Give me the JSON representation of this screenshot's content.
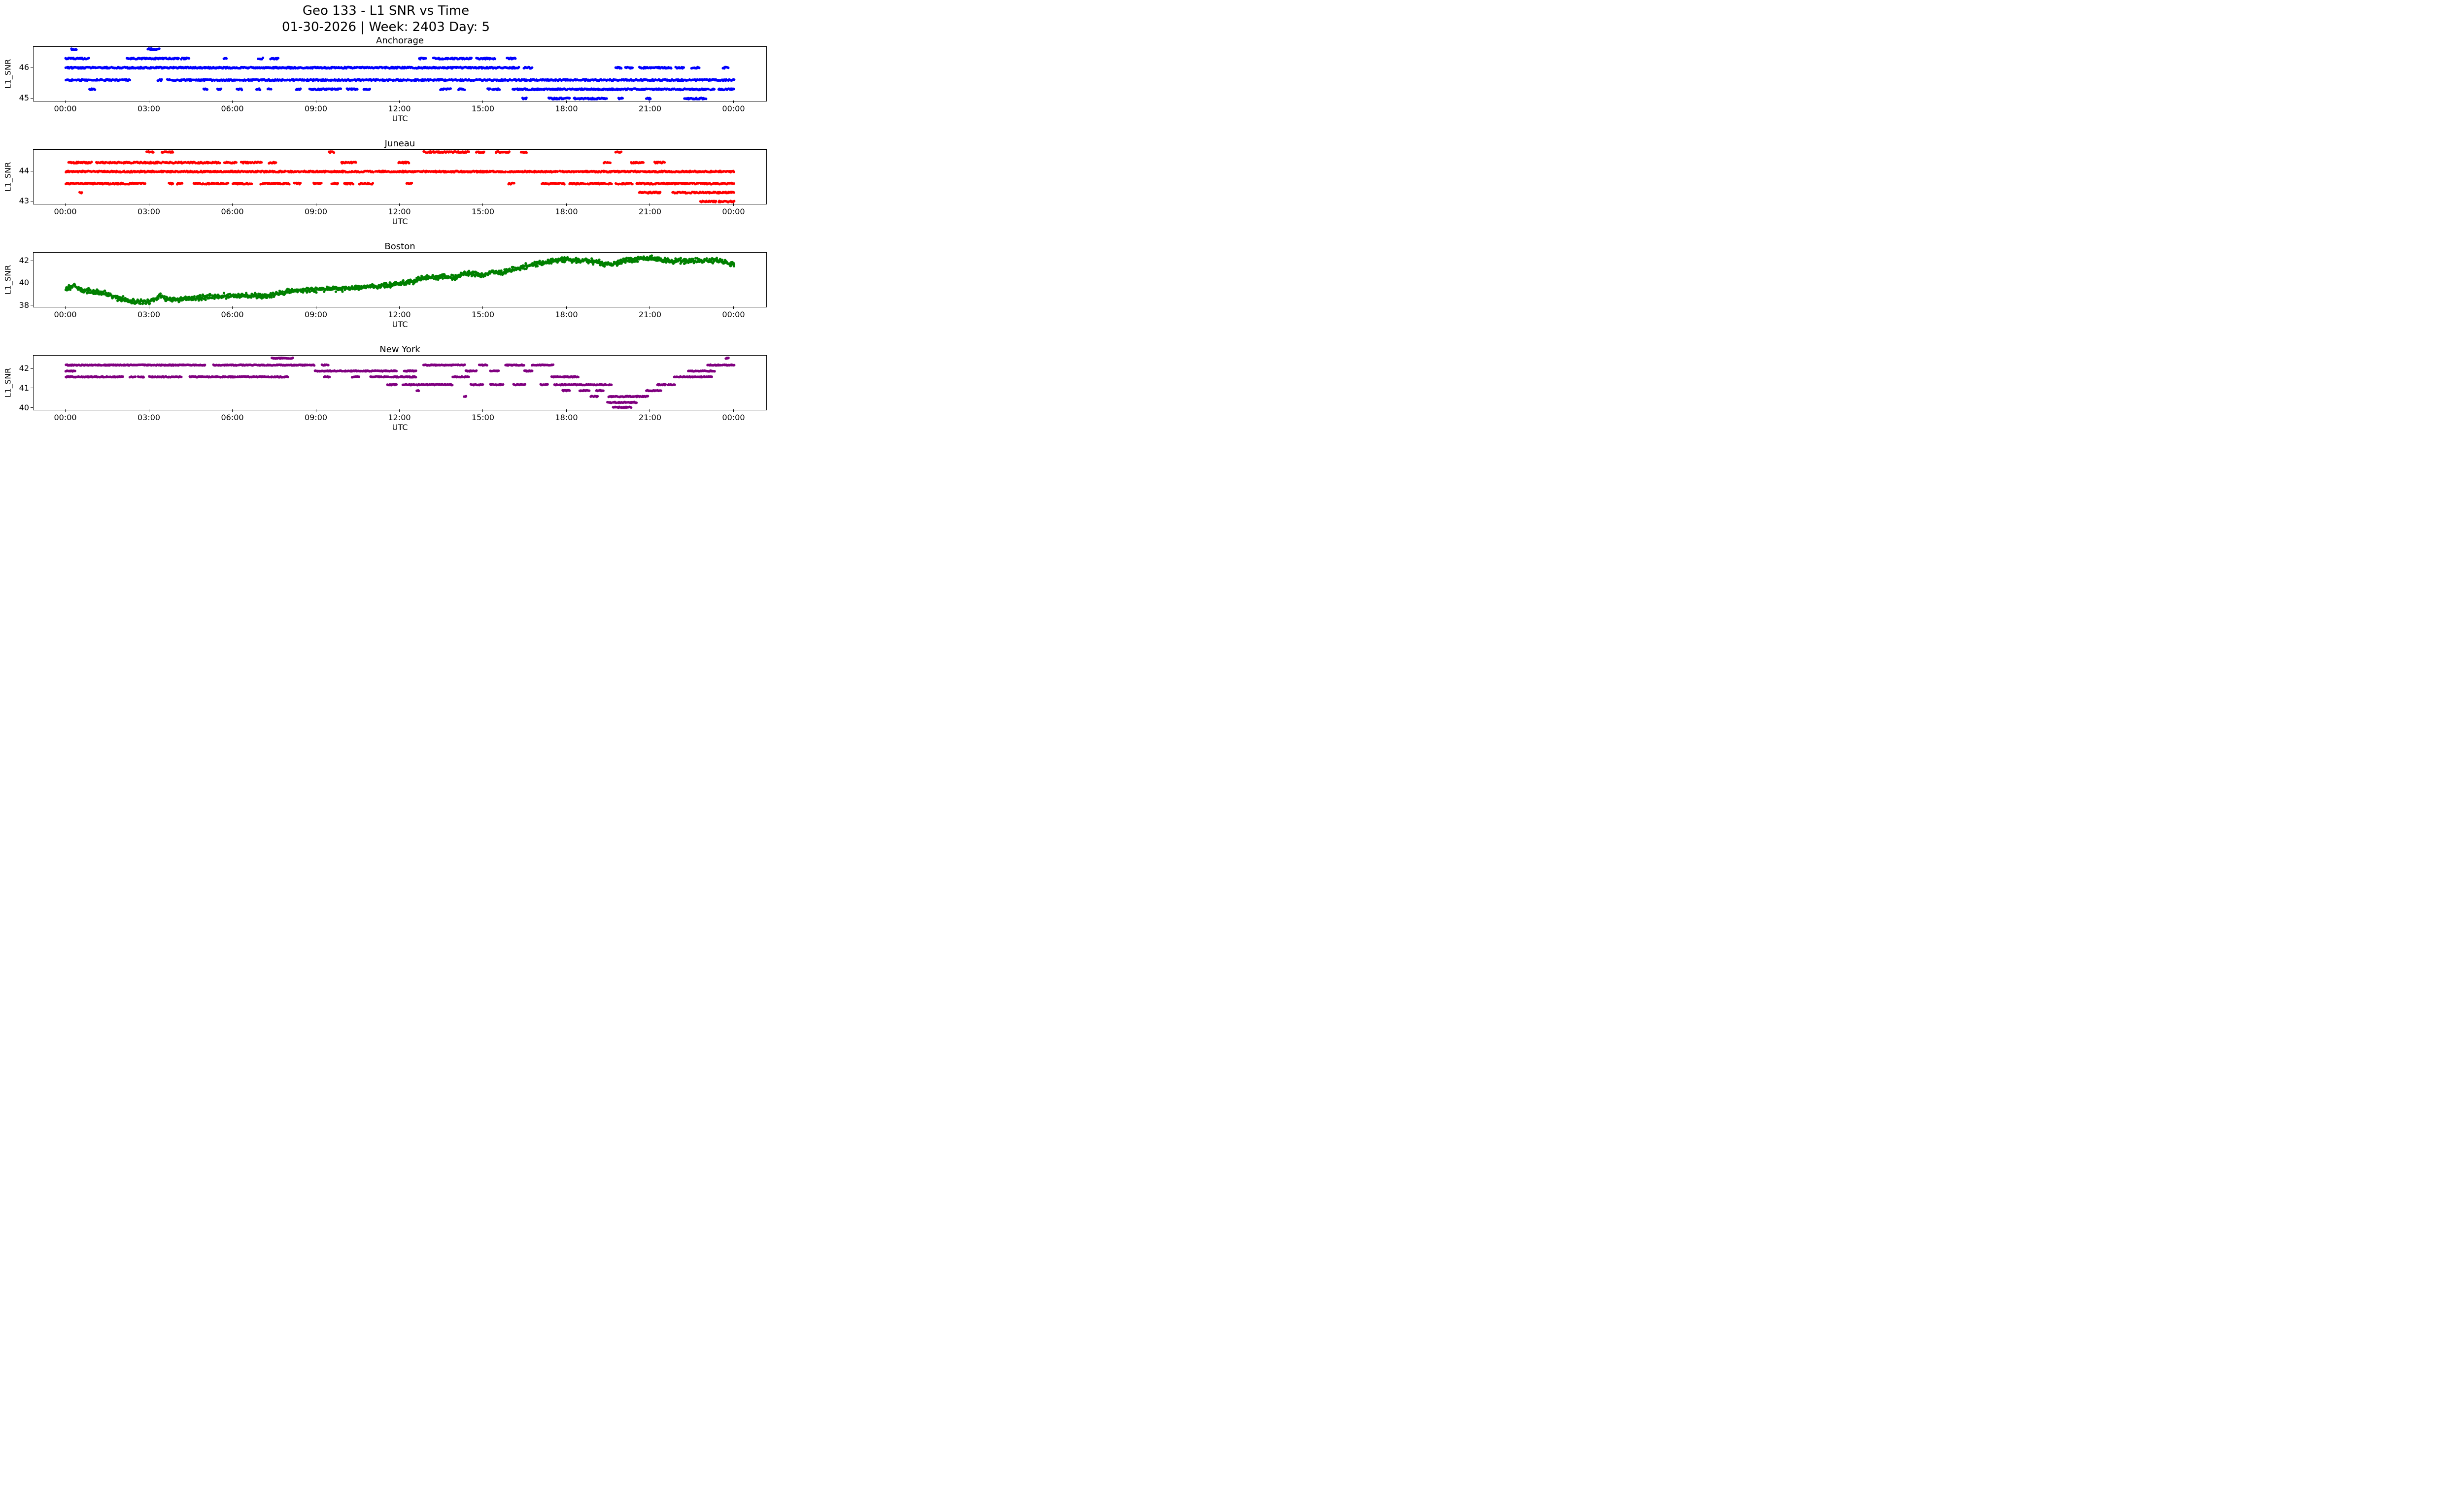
{
  "figure": {
    "title_line1": "Geo 133 - L1 SNR vs Time",
    "title_line2": "01-30-2026 | Week: 2403 Day: 5"
  },
  "axes_common": {
    "xlabel": "UTC",
    "ylabel": "L1_SNR",
    "xtick_labels": [
      "00:00",
      "03:00",
      "06:00",
      "09:00",
      "12:00",
      "15:00",
      "18:00",
      "21:00",
      "00:00"
    ],
    "xtick_hours": [
      0,
      3,
      6,
      9,
      12,
      15,
      18,
      21,
      24
    ],
    "xlim": [
      -1.16,
      25.16
    ]
  },
  "chart_data": [
    {
      "type": "scatter",
      "title": "Anchorage",
      "color": "#0000ff",
      "xlabel": "UTC",
      "ylabel": "L1_SNR",
      "yticks": [
        45,
        46
      ],
      "ylim": [
        44.92,
        46.68
      ],
      "bands": [
        {
          "y": 46.6,
          "segments": [
            [
              0.2,
              0.4
            ],
            [
              2.95,
              3.35
            ]
          ]
        },
        {
          "y": 46.3,
          "segments": [
            [
              0.0,
              0.85
            ],
            [
              2.2,
              4.05
            ],
            [
              4.15,
              4.45
            ],
            [
              5.65,
              5.8
            ],
            [
              6.9,
              7.1
            ],
            [
              7.35,
              7.65
            ],
            [
              12.7,
              12.95
            ],
            [
              13.2,
              14.6
            ],
            [
              14.75,
              15.45
            ],
            [
              15.85,
              16.15
            ]
          ]
        },
        {
          "y": 46.0,
          "segments": [
            [
              0.0,
              16.3
            ],
            [
              16.45,
              16.75
            ],
            [
              19.75,
              19.95
            ],
            [
              20.1,
              20.35
            ],
            [
              20.6,
              21.75
            ],
            [
              21.9,
              22.2
            ],
            [
              22.45,
              22.75
            ],
            [
              23.6,
              23.8
            ]
          ]
        },
        {
          "y": 45.6,
          "segments": [
            [
              0.0,
              2.3
            ],
            [
              3.3,
              3.45
            ],
            [
              3.65,
              24.0
            ]
          ]
        },
        {
          "y": 45.3,
          "segments": [
            [
              0.85,
              1.05
            ],
            [
              4.95,
              5.1
            ],
            [
              5.45,
              5.6
            ],
            [
              6.15,
              6.35
            ],
            [
              6.85,
              7.0
            ],
            [
              7.25,
              7.4
            ],
            [
              8.25,
              8.45
            ],
            [
              8.75,
              9.9
            ],
            [
              10.1,
              10.5
            ],
            [
              10.7,
              10.95
            ],
            [
              13.45,
              13.85
            ],
            [
              14.1,
              14.35
            ],
            [
              15.15,
              15.6
            ],
            [
              16.05,
              23.3
            ],
            [
              23.45,
              24.0
            ]
          ]
        },
        {
          "y": 45.0,
          "segments": [
            [
              16.4,
              16.55
            ],
            [
              17.35,
              18.1
            ],
            [
              18.25,
              19.45
            ],
            [
              19.85,
              20.0
            ],
            [
              20.85,
              21.0
            ],
            [
              22.2,
              23.0
            ]
          ]
        }
      ]
    },
    {
      "type": "scatter",
      "title": "Juneau",
      "color": "#ff0000",
      "xlabel": "UTC",
      "ylabel": "L1_SNR",
      "yticks": [
        43,
        44
      ],
      "ylim": [
        42.92,
        44.73
      ],
      "bands": [
        {
          "y": 44.65,
          "segments": [
            [
              2.9,
              3.15
            ],
            [
              3.45,
              3.85
            ],
            [
              9.45,
              9.65
            ],
            [
              12.85,
              14.5
            ],
            [
              14.7,
              15.05
            ],
            [
              15.45,
              15.95
            ],
            [
              16.35,
              16.55
            ],
            [
              19.75,
              19.95
            ]
          ]
        },
        {
          "y": 44.3,
          "segments": [
            [
              0.1,
              0.95
            ],
            [
              1.1,
              5.55
            ],
            [
              5.7,
              6.15
            ],
            [
              6.3,
              7.05
            ],
            [
              7.3,
              7.6
            ],
            [
              9.9,
              10.45
            ],
            [
              11.95,
              12.35
            ],
            [
              19.3,
              19.55
            ],
            [
              20.3,
              20.75
            ],
            [
              21.15,
              21.5
            ]
          ]
        },
        {
          "y": 44.0,
          "segments": [
            [
              0.0,
              24.0
            ]
          ]
        },
        {
          "y": 43.6,
          "segments": [
            [
              0.0,
              2.85
            ],
            [
              3.7,
              3.85
            ],
            [
              4.0,
              4.2
            ],
            [
              4.6,
              5.85
            ],
            [
              6.0,
              6.7
            ],
            [
              7.0,
              8.05
            ],
            [
              8.2,
              8.45
            ],
            [
              8.9,
              9.2
            ],
            [
              9.55,
              9.8
            ],
            [
              10.0,
              10.35
            ],
            [
              10.55,
              11.05
            ],
            [
              12.25,
              12.45
            ],
            [
              15.9,
              16.1
            ],
            [
              17.1,
              17.9
            ],
            [
              18.1,
              19.6
            ],
            [
              19.75,
              20.35
            ],
            [
              20.5,
              24.0
            ]
          ]
        },
        {
          "y": 43.3,
          "segments": [
            [
              0.5,
              0.58
            ],
            [
              20.6,
              21.35
            ],
            [
              21.8,
              24.0
            ]
          ]
        },
        {
          "y": 43.0,
          "segments": [
            [
              22.8,
              23.35
            ],
            [
              23.45,
              24.0
            ]
          ]
        }
      ]
    },
    {
      "type": "scatter",
      "title": "Boston",
      "color": "#008000",
      "xlabel": "UTC",
      "ylabel": "L1_SNR",
      "yticks": [
        38,
        40,
        42
      ],
      "ylim": [
        37.9,
        42.75
      ],
      "noise": 0.13,
      "trend": [
        [
          0,
          39.55
        ],
        [
          0.3,
          39.85
        ],
        [
          0.6,
          39.35
        ],
        [
          1.0,
          39.25
        ],
        [
          1.4,
          39.1
        ],
        [
          1.8,
          38.75
        ],
        [
          2.2,
          38.5
        ],
        [
          2.6,
          38.35
        ],
        [
          3.0,
          38.35
        ],
        [
          3.4,
          38.9
        ],
        [
          3.7,
          38.6
        ],
        [
          4.0,
          38.55
        ],
        [
          4.5,
          38.7
        ],
        [
          5.0,
          38.75
        ],
        [
          5.5,
          38.85
        ],
        [
          6.0,
          38.9
        ],
        [
          6.5,
          38.9
        ],
        [
          7.0,
          38.9
        ],
        [
          7.5,
          39.0
        ],
        [
          8.0,
          39.3
        ],
        [
          8.5,
          39.4
        ],
        [
          9.0,
          39.45
        ],
        [
          9.5,
          39.5
        ],
        [
          10.0,
          39.5
        ],
        [
          10.5,
          39.6
        ],
        [
          11.0,
          39.75
        ],
        [
          11.5,
          39.8
        ],
        [
          12.0,
          40.0
        ],
        [
          12.5,
          40.2
        ],
        [
          13.0,
          40.55
        ],
        [
          13.5,
          40.6
        ],
        [
          14.0,
          40.55
        ],
        [
          14.3,
          40.9
        ],
        [
          14.7,
          40.85
        ],
        [
          15.0,
          40.75
        ],
        [
          15.3,
          41.0
        ],
        [
          15.7,
          41.0
        ],
        [
          16.0,
          41.2
        ],
        [
          16.5,
          41.5
        ],
        [
          17.0,
          41.8
        ],
        [
          17.5,
          42.0
        ],
        [
          18.0,
          42.1
        ],
        [
          18.5,
          42.05
        ],
        [
          19.0,
          42.0
        ],
        [
          19.3,
          41.75
        ],
        [
          19.6,
          41.7
        ],
        [
          20.0,
          42.0
        ],
        [
          20.5,
          42.15
        ],
        [
          21.0,
          42.3
        ],
        [
          21.3,
          42.1
        ],
        [
          21.7,
          42.0
        ],
        [
          22.0,
          42.05
        ],
        [
          22.5,
          42.0
        ],
        [
          23.0,
          42.05
        ],
        [
          23.5,
          42.0
        ],
        [
          24.0,
          41.75
        ]
      ]
    },
    {
      "type": "scatter",
      "title": "New York",
      "color": "#800080",
      "xlabel": "UTC",
      "ylabel": "L1_SNR",
      "yticks": [
        40,
        41,
        42
      ],
      "ylim": [
        39.92,
        42.68
      ],
      "bands": [
        {
          "y": 42.55,
          "segments": [
            [
              7.4,
              8.2
            ],
            [
              23.7,
              23.82
            ]
          ]
        },
        {
          "y": 42.2,
          "segments": [
            [
              0.0,
              5.05
            ],
            [
              5.3,
              8.95
            ],
            [
              9.2,
              9.45
            ],
            [
              12.85,
              14.35
            ],
            [
              14.85,
              15.15
            ],
            [
              15.8,
              16.45
            ],
            [
              16.75,
              17.5
            ],
            [
              23.05,
              24.0
            ]
          ]
        },
        {
          "y": 41.9,
          "segments": [
            [
              0.0,
              0.35
            ],
            [
              8.95,
              11.9
            ],
            [
              12.15,
              12.6
            ],
            [
              14.35,
              14.8
            ],
            [
              15.25,
              15.6
            ],
            [
              16.45,
              16.75
            ],
            [
              22.35,
              23.3
            ]
          ]
        },
        {
          "y": 41.6,
          "segments": [
            [
              0.0,
              2.05
            ],
            [
              2.3,
              2.5
            ],
            [
              2.6,
              2.8
            ],
            [
              3.0,
              4.15
            ],
            [
              4.45,
              8.0
            ],
            [
              9.25,
              9.5
            ],
            [
              10.25,
              10.55
            ],
            [
              10.95,
              12.6
            ],
            [
              13.9,
              14.5
            ],
            [
              17.45,
              18.4
            ],
            [
              21.85,
              23.2
            ]
          ]
        },
        {
          "y": 41.2,
          "segments": [
            [
              11.55,
              11.9
            ],
            [
              12.1,
              13.9
            ],
            [
              14.55,
              15.0
            ],
            [
              15.25,
              15.75
            ],
            [
              16.05,
              16.5
            ],
            [
              17.05,
              17.3
            ],
            [
              17.55,
              19.6
            ],
            [
              21.25,
              21.9
            ]
          ]
        },
        {
          "y": 40.9,
          "segments": [
            [
              12.6,
              12.68
            ],
            [
              17.85,
              18.1
            ],
            [
              18.45,
              18.8
            ],
            [
              19.05,
              19.3
            ],
            [
              20.85,
              21.4
            ]
          ]
        },
        {
          "y": 40.6,
          "segments": [
            [
              14.3,
              14.38
            ],
            [
              18.85,
              19.1
            ],
            [
              19.45,
              20.9
            ]
          ]
        },
        {
          "y": 40.3,
          "segments": [
            [
              19.45,
              20.5
            ]
          ]
        },
        {
          "y": 40.05,
          "segments": [
            [
              19.65,
              20.3
            ]
          ]
        }
      ]
    }
  ]
}
